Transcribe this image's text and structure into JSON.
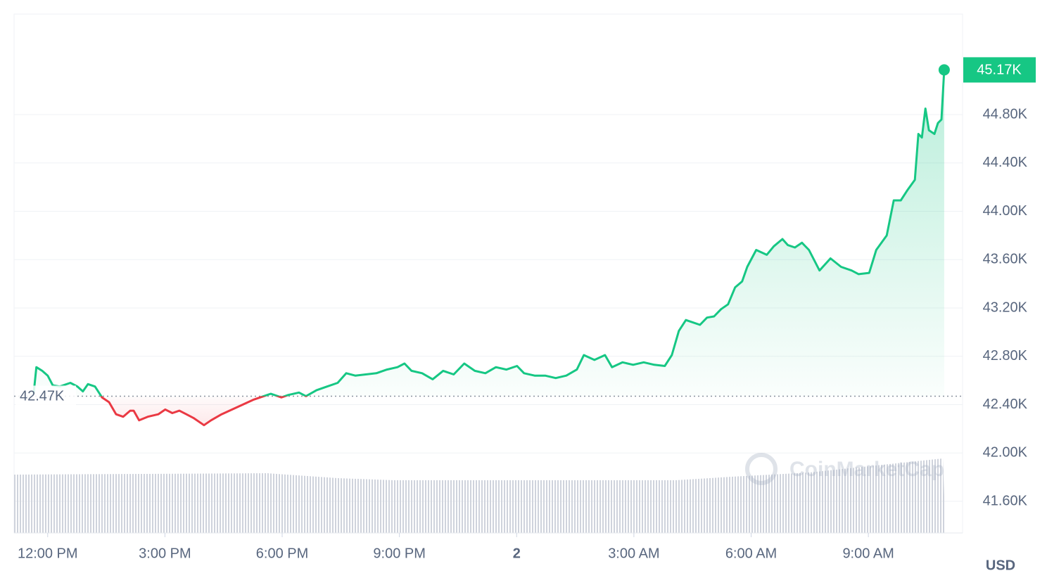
{
  "chart_data": {
    "type": "line",
    "x": [
      11.64,
      11.71,
      11.86,
      12.0,
      12.13,
      12.31,
      12.58,
      12.76,
      12.9,
      13.03,
      13.21,
      13.39,
      13.57,
      13.75,
      13.93,
      14.11,
      14.2,
      14.34,
      14.56,
      14.83,
      15.01,
      15.19,
      15.37,
      15.55,
      15.73,
      16.0,
      16.18,
      16.45,
      16.72,
      16.99,
      17.26,
      17.53,
      17.71,
      17.98,
      18.16,
      18.43,
      18.61,
      18.88,
      19.15,
      19.42,
      19.64,
      19.87,
      20.14,
      20.41,
      20.68,
      20.95,
      21.13,
      21.31,
      21.58,
      21.85,
      22.12,
      22.39,
      22.66,
      22.93,
      23.2,
      23.47,
      23.74,
      24.01,
      24.19,
      24.46,
      24.73,
      25.0,
      25.27,
      25.54,
      25.72,
      25.99,
      26.26,
      26.44,
      26.71,
      26.98,
      27.25,
      27.52,
      27.79,
      27.97,
      28.15,
      28.33,
      28.51,
      28.69,
      28.87,
      29.05,
      29.23,
      29.41,
      29.59,
      29.77,
      29.9,
      30.13,
      30.4,
      30.58,
      30.8,
      30.94,
      31.12,
      31.3,
      31.48,
      31.75,
      32.03,
      32.3,
      32.57,
      32.75,
      33.02,
      33.2,
      33.47,
      33.65,
      33.83,
      34.01,
      34.19,
      34.28,
      34.37,
      34.46,
      34.55,
      34.69,
      34.78,
      34.87,
      34.94
    ],
    "values": [
      42490,
      42710,
      42680,
      42640,
      42560,
      42550,
      42580,
      42550,
      42510,
      42570,
      42550,
      42460,
      42420,
      42320,
      42300,
      42350,
      42350,
      42270,
      42300,
      42320,
      42360,
      42330,
      42350,
      42320,
      42290,
      42230,
      42270,
      42320,
      42360,
      42400,
      42440,
      42470,
      42490,
      42460,
      42480,
      42500,
      42470,
      42520,
      42550,
      42580,
      42660,
      42640,
      42650,
      42660,
      42690,
      42710,
      42740,
      42680,
      42660,
      42610,
      42680,
      42650,
      42740,
      42680,
      42660,
      42710,
      42690,
      42720,
      42660,
      42640,
      42640,
      42620,
      42640,
      42690,
      42810,
      42770,
      42810,
      42710,
      42750,
      42730,
      42750,
      42730,
      42720,
      42810,
      43010,
      43100,
      43080,
      43060,
      43120,
      43130,
      43190,
      43230,
      43370,
      43420,
      43540,
      43680,
      43640,
      43710,
      43770,
      43720,
      43700,
      43740,
      43680,
      43510,
      43610,
      43540,
      43510,
      43480,
      43490,
      43680,
      43800,
      44090,
      44090,
      44180,
      44260,
      44640,
      44610,
      44850,
      44670,
      44640,
      44730,
      44760,
      45170
    ],
    "color": "#16c784",
    "down_color": "#ea3943",
    "baseline": {
      "value": 42470,
      "label": "42.47K"
    },
    "last_price": {
      "value": 45170,
      "label": "45.17K"
    },
    "xlim": [
      11.14,
      35.41
    ],
    "xticks": [
      {
        "value": 12,
        "label": "12:00 PM"
      },
      {
        "value": 15,
        "label": "3:00 PM"
      },
      {
        "value": 18,
        "label": "6:00 PM"
      },
      {
        "value": 21,
        "label": "9:00 PM"
      },
      {
        "value": 24,
        "label": "2"
      },
      {
        "value": 27,
        "label": "3:00 AM"
      },
      {
        "value": 30,
        "label": "6:00 AM"
      },
      {
        "value": 33,
        "label": "9:00 AM"
      }
    ],
    "ylim": [
      41338,
      45632
    ],
    "yticks": [
      {
        "value": 44800,
        "label": "44.80K"
      },
      {
        "value": 44400,
        "label": "44.40K"
      },
      {
        "value": 44000,
        "label": "44.00K"
      },
      {
        "value": 43600,
        "label": "43.60K"
      },
      {
        "value": 43200,
        "label": "43.20K"
      },
      {
        "value": 42800,
        "label": "42.80K"
      },
      {
        "value": 42400,
        "label": "42.40K"
      },
      {
        "value": 42000,
        "label": "42.00K"
      },
      {
        "value": 41600,
        "label": "41.60K"
      }
    ],
    "grid": true,
    "currency": "USD",
    "watermark": "CoinMarketCap"
  }
}
